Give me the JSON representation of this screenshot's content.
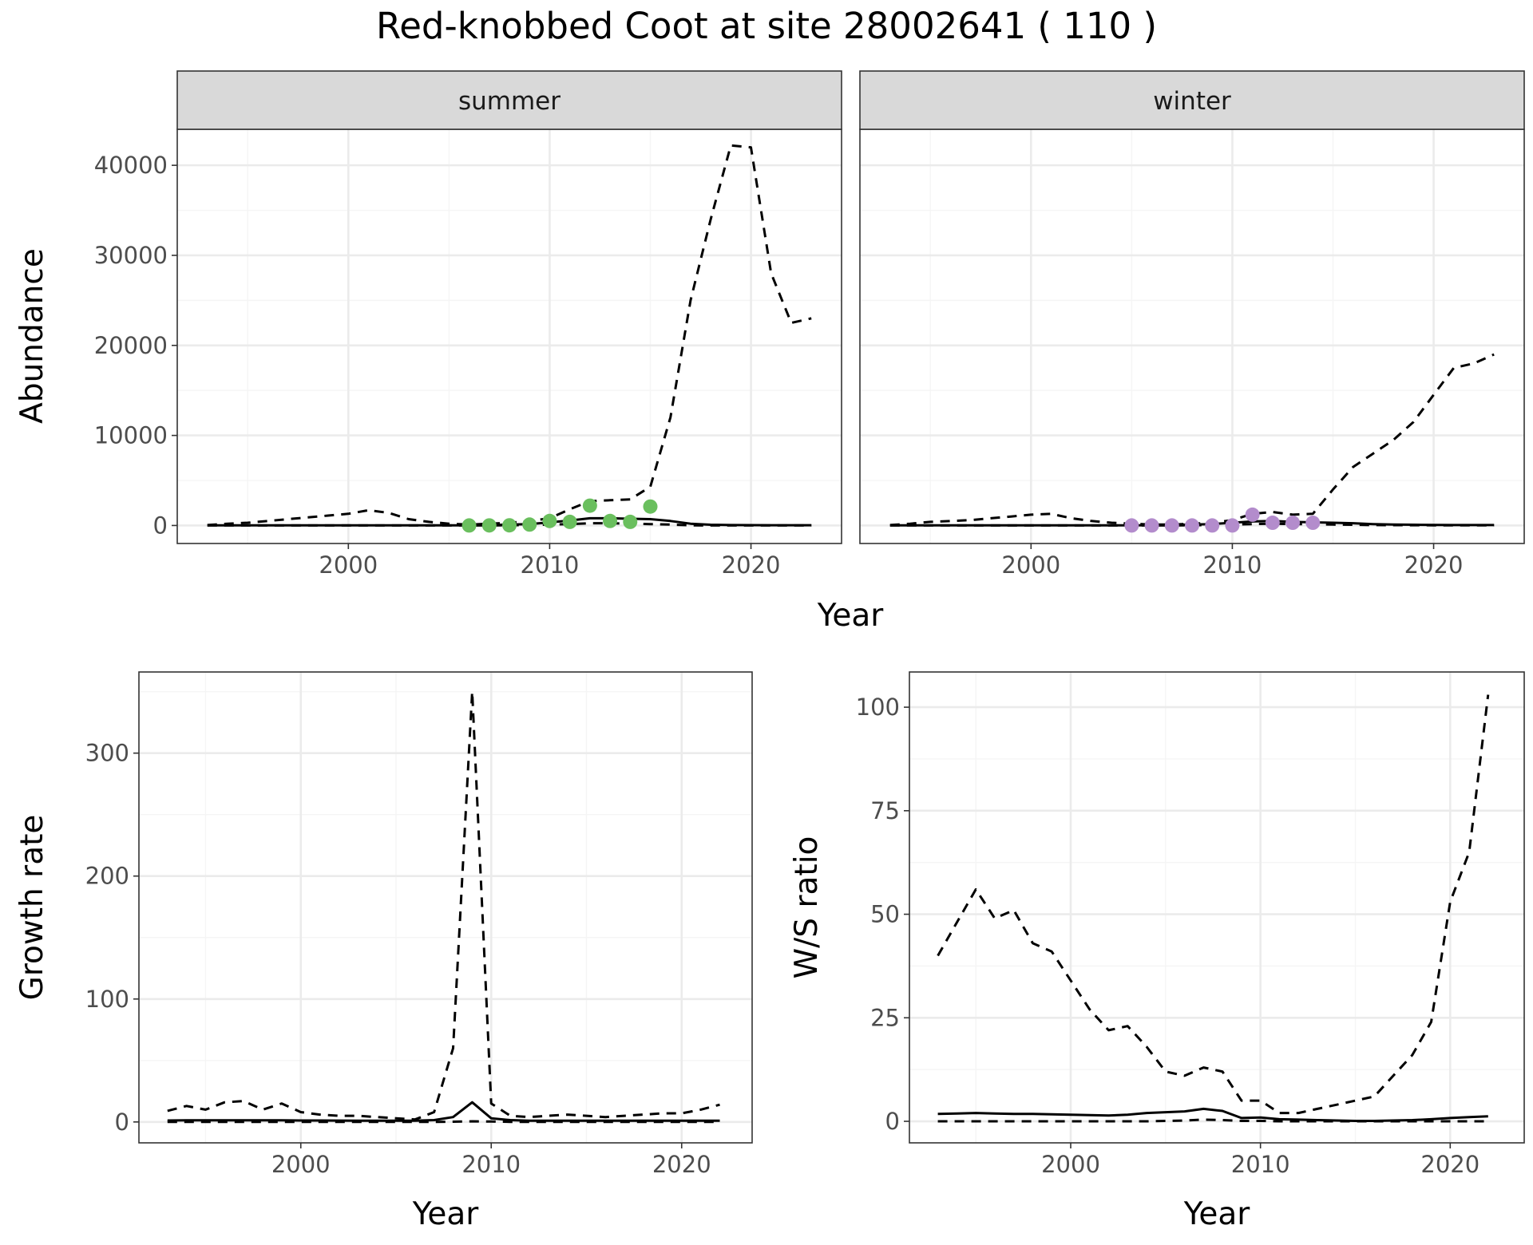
{
  "title": "Red-knobbed Coot at site 28002641 ( 110 )",
  "colors": {
    "summer_points": "#6abf5e",
    "winter_points": "#b38ccc",
    "line": "#000000",
    "strip_bg": "#d9d9d9",
    "grid_major": "#ebebeb",
    "grid_minor": "#f5f5f5",
    "tick_text": "#4d4d4d"
  },
  "chart_data": [
    {
      "type": "line",
      "panel": "summer",
      "strip_label": "summer",
      "xlabel": "Year",
      "ylabel": "Abundance",
      "xlim": [
        1991.5,
        2024.5
      ],
      "ylim": [
        -2000,
        44000
      ],
      "xticks": [
        2000,
        2010,
        2020
      ],
      "yticks": [
        0,
        10000,
        20000,
        30000,
        40000
      ],
      "series": [
        {
          "role": "estimate",
          "style": "solid",
          "x": [
            1993,
            1994,
            1995,
            1996,
            1997,
            1998,
            1999,
            2000,
            2001,
            2002,
            2003,
            2004,
            2005,
            2006,
            2007,
            2008,
            2009,
            2010,
            2011,
            2012,
            2013,
            2014,
            2015,
            2016,
            2017,
            2018,
            2019,
            2020,
            2021,
            2022,
            2023
          ],
          "y": [
            10,
            10,
            10,
            10,
            10,
            10,
            10,
            10,
            20,
            20,
            20,
            20,
            20,
            20,
            50,
            100,
            150,
            350,
            550,
            800,
            800,
            750,
            700,
            500,
            200,
            80,
            50,
            40,
            30,
            30,
            30
          ]
        },
        {
          "role": "upper",
          "style": "dashed",
          "x": [
            1993,
            1994,
            1995,
            1996,
            1997,
            1998,
            1999,
            2000,
            2001,
            2002,
            2003,
            2004,
            2005,
            2006,
            2007,
            2008,
            2009,
            2010,
            2011,
            2012,
            2013,
            2014,
            2015,
            2016,
            2017,
            2018,
            2019,
            2020,
            2021,
            2022,
            2023
          ],
          "y": [
            50,
            200,
            300,
            500,
            700,
            900,
            1100,
            1300,
            1700,
            1400,
            700,
            400,
            200,
            100,
            200,
            300,
            500,
            800,
            1800,
            2700,
            2800,
            2900,
            4300,
            12000,
            25000,
            34000,
            42200,
            42000,
            28000,
            22500,
            23000
          ]
        },
        {
          "role": "lower",
          "style": "dashed",
          "x": [
            1993,
            1994,
            1995,
            1996,
            1997,
            1998,
            1999,
            2000,
            2001,
            2002,
            2003,
            2004,
            2005,
            2006,
            2007,
            2008,
            2009,
            2010,
            2011,
            2012,
            2013,
            2014,
            2015,
            2016,
            2017,
            2018,
            2019,
            2020,
            2021,
            2022,
            2023
          ],
          "y": [
            0,
            0,
            0,
            0,
            0,
            0,
            0,
            0,
            0,
            0,
            0,
            0,
            0,
            0,
            0,
            20,
            50,
            100,
            150,
            250,
            250,
            200,
            150,
            100,
            20,
            5,
            0,
            0,
            0,
            0,
            0
          ]
        }
      ],
      "points": {
        "x": [
          2006,
          2007,
          2008,
          2009,
          2010,
          2011,
          2012,
          2013,
          2014,
          2015
        ],
        "y": [
          0,
          10,
          20,
          100,
          500,
          400,
          2200,
          500,
          400,
          2100
        ]
      }
    },
    {
      "type": "line",
      "panel": "winter",
      "strip_label": "winter",
      "xlabel": "Year",
      "ylabel": "Abundance",
      "xlim": [
        1991.5,
        2024.5
      ],
      "ylim": [
        -2000,
        44000
      ],
      "xticks": [
        2000,
        2010,
        2020
      ],
      "yticks": [
        0,
        10000,
        20000,
        30000,
        40000
      ],
      "series": [
        {
          "role": "estimate",
          "style": "solid",
          "x": [
            1993,
            1994,
            1995,
            1996,
            1997,
            1998,
            1999,
            2000,
            2001,
            2002,
            2003,
            2004,
            2005,
            2006,
            2007,
            2008,
            2009,
            2010,
            2011,
            2012,
            2013,
            2014,
            2015,
            2016,
            2017,
            2018,
            2019,
            2020,
            2021,
            2022,
            2023
          ],
          "y": [
            10,
            10,
            10,
            10,
            10,
            10,
            10,
            10,
            10,
            10,
            20,
            20,
            20,
            30,
            50,
            100,
            150,
            300,
            450,
            500,
            400,
            350,
            300,
            250,
            150,
            100,
            80,
            60,
            50,
            50,
            50
          ]
        },
        {
          "role": "upper",
          "style": "dashed",
          "x": [
            1993,
            1994,
            1995,
            1996,
            1997,
            1998,
            1999,
            2000,
            2001,
            2002,
            2003,
            2004,
            2005,
            2006,
            2007,
            2008,
            2009,
            2010,
            2011,
            2012,
            2013,
            2014,
            2015,
            2016,
            2017,
            2018,
            2019,
            2020,
            2021,
            2022,
            2023
          ],
          "y": [
            50,
            200,
            400,
            500,
            600,
            800,
            1000,
            1200,
            1300,
            800,
            500,
            300,
            200,
            100,
            100,
            200,
            300,
            600,
            1300,
            1500,
            1200,
            1300,
            4000,
            6500,
            8000,
            9500,
            11500,
            14500,
            17500,
            18000,
            19000
          ]
        },
        {
          "role": "lower",
          "style": "dashed",
          "x": [
            1993,
            1994,
            1995,
            1996,
            1997,
            1998,
            1999,
            2000,
            2001,
            2002,
            2003,
            2004,
            2005,
            2006,
            2007,
            2008,
            2009,
            2010,
            2011,
            2012,
            2013,
            2014,
            2015,
            2016,
            2017,
            2018,
            2019,
            2020,
            2021,
            2022,
            2023
          ],
          "y": [
            0,
            0,
            0,
            0,
            0,
            0,
            0,
            0,
            0,
            0,
            0,
            0,
            0,
            0,
            0,
            20,
            50,
            100,
            150,
            200,
            150,
            150,
            100,
            80,
            50,
            40,
            30,
            20,
            20,
            20,
            20
          ]
        }
      ],
      "points": {
        "x": [
          2005,
          2006,
          2007,
          2008,
          2009,
          2010,
          2011,
          2012,
          2013,
          2014
        ],
        "y": [
          0,
          0,
          0,
          0,
          0,
          0,
          1200,
          300,
          300,
          300
        ]
      }
    },
    {
      "type": "line",
      "panel": "growth",
      "xlabel": "Year",
      "ylabel": "Growth rate",
      "xlim": [
        1991.5,
        2023.7
      ],
      "ylim": [
        -17,
        366
      ],
      "xticks": [
        2000,
        2010,
        2020
      ],
      "yticks": [
        0,
        100,
        200,
        300
      ],
      "series": [
        {
          "role": "estimate",
          "style": "solid",
          "x": [
            1993,
            1994,
            1995,
            1996,
            1997,
            1998,
            1999,
            2000,
            2001,
            2002,
            2003,
            2004,
            2005,
            2006,
            2007,
            2008,
            2009,
            2010,
            2011,
            2012,
            2013,
            2014,
            2015,
            2016,
            2017,
            2018,
            2019,
            2020,
            2021,
            2022
          ],
          "y": [
            1.2,
            1.3,
            1.3,
            1.3,
            1.3,
            1.3,
            1.3,
            1.2,
            1.2,
            1.1,
            1,
            1,
            1,
            1,
            1.5,
            4,
            16,
            3,
            1.5,
            1,
            1,
            1,
            1,
            1,
            1,
            1,
            1,
            1,
            1,
            1
          ]
        },
        {
          "role": "upper",
          "style": "dashed",
          "x": [
            1993,
            1994,
            1995,
            1996,
            1997,
            1998,
            1999,
            2000,
            2001,
            2002,
            2003,
            2004,
            2005,
            2006,
            2007,
            2008,
            2009,
            2010,
            2011,
            2012,
            2013,
            2014,
            2015,
            2016,
            2017,
            2018,
            2019,
            2020,
            2021,
            2022
          ],
          "y": [
            9,
            13,
            10,
            16,
            17,
            10,
            15,
            8,
            6,
            5,
            5,
            4,
            3,
            2,
            8,
            60,
            350,
            15,
            5,
            4,
            5,
            6,
            5,
            4,
            5,
            6,
            7,
            7,
            10,
            14
          ]
        },
        {
          "role": "lower",
          "style": "dashed",
          "x": [
            1993,
            1994,
            1995,
            1996,
            1997,
            1998,
            1999,
            2000,
            2001,
            2002,
            2003,
            2004,
            2005,
            2006,
            2007,
            2008,
            2009,
            2010,
            2011,
            2012,
            2013,
            2014,
            2015,
            2016,
            2017,
            2018,
            2019,
            2020,
            2021,
            2022
          ],
          "y": [
            0,
            0,
            0,
            0,
            0,
            0,
            0,
            0,
            0,
            0,
            0,
            0,
            0,
            0,
            0,
            0.2,
            0.5,
            0.3,
            0.1,
            0,
            0,
            0,
            0,
            0,
            0,
            0,
            0,
            0,
            0,
            0
          ]
        }
      ]
    },
    {
      "type": "line",
      "panel": "ratio",
      "xlabel": "Year",
      "ylabel": "W/S ratio",
      "xlim": [
        1991.5,
        2023.9
      ],
      "ylim": [
        -5.2,
        108.5
      ],
      "xticks": [
        2000,
        2010,
        2020
      ],
      "yticks": [
        0,
        25,
        50,
        75,
        100
      ],
      "series": [
        {
          "role": "estimate",
          "style": "solid",
          "x": [
            1993,
            1994,
            1995,
            1996,
            1997,
            1998,
            1999,
            2000,
            2001,
            2002,
            2003,
            2004,
            2005,
            2006,
            2007,
            2008,
            2009,
            2010,
            2011,
            2012,
            2013,
            2014,
            2015,
            2016,
            2017,
            2018,
            2019,
            2020,
            2021,
            2022
          ],
          "y": [
            1.8,
            1.9,
            2,
            1.9,
            1.8,
            1.8,
            1.7,
            1.6,
            1.5,
            1.4,
            1.6,
            2,
            2.2,
            2.4,
            3,
            2.5,
            0.8,
            0.9,
            0.5,
            0.4,
            0.3,
            0.2,
            0.1,
            0.1,
            0.2,
            0.3,
            0.5,
            0.8,
            1,
            1.2
          ]
        },
        {
          "role": "upper",
          "style": "dashed",
          "x": [
            1993,
            1994,
            1995,
            1996,
            1997,
            1998,
            1999,
            2000,
            2001,
            2002,
            2003,
            2004,
            2005,
            2006,
            2007,
            2008,
            2009,
            2010,
            2011,
            2012,
            2013,
            2014,
            2015,
            2016,
            2017,
            2018,
            2019,
            2020,
            2021,
            2022
          ],
          "y": [
            40,
            48,
            56,
            49,
            51,
            43,
            41,
            34,
            27,
            22,
            23,
            18,
            12,
            11,
            13,
            12,
            5,
            5,
            2,
            2,
            3,
            4,
            5,
            6,
            11,
            16,
            24,
            53,
            65,
            103
          ]
        },
        {
          "role": "lower",
          "style": "dashed",
          "x": [
            1993,
            1994,
            1995,
            1996,
            1997,
            1998,
            1999,
            2000,
            2001,
            2002,
            2003,
            2004,
            2005,
            2006,
            2007,
            2008,
            2009,
            2010,
            2011,
            2012,
            2013,
            2014,
            2015,
            2016,
            2017,
            2018,
            2019,
            2020,
            2021,
            2022
          ],
          "y": [
            0,
            0,
            0,
            0,
            0,
            0,
            0,
            0,
            0,
            0,
            0,
            0,
            0.1,
            0.2,
            0.4,
            0.3,
            0.1,
            0.1,
            0,
            0,
            0,
            0,
            0,
            0,
            0,
            0,
            0,
            0,
            0,
            0
          ]
        }
      ]
    }
  ]
}
